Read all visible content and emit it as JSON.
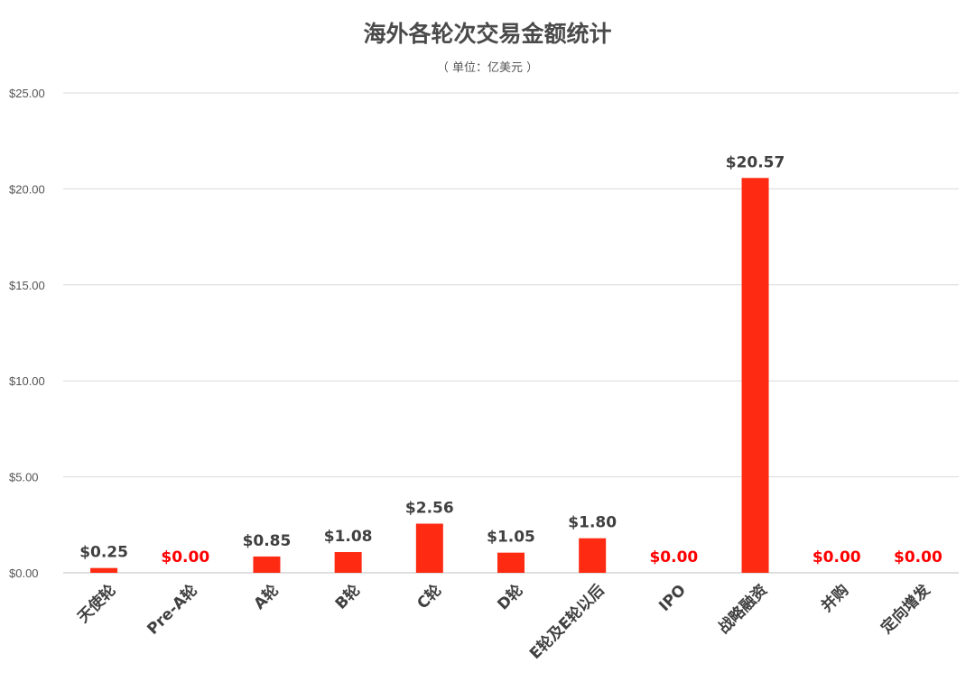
{
  "colors": {
    "bar": "#ff2a12",
    "label_normal": "#404040",
    "label_zero": "#ff0000",
    "grid": "#d9d9d9",
    "title": "#4a4a4a"
  },
  "chart_data": {
    "type": "bar",
    "title": "海外各轮次交易金额统计",
    "subtitle": "（ 单位：亿美元 ）",
    "xlabel": "",
    "ylabel": "",
    "ylim": [
      0,
      25
    ],
    "yticks": [
      0,
      5,
      10,
      15,
      20,
      25
    ],
    "ytick_labels": [
      "$0.00",
      "$5.00",
      "$10.00",
      "$15.00",
      "$20.00",
      "$25.00"
    ],
    "grid": true,
    "legend": "none",
    "categories": [
      "天使轮",
      "Pre-A轮",
      "A轮",
      "B轮",
      "C轮",
      "D轮",
      "E轮及E轮以后",
      "IPO",
      "战略融资",
      "并购",
      "定向增发"
    ],
    "values": [
      0.25,
      0.0,
      0.85,
      1.08,
      2.56,
      1.05,
      1.8,
      0.0,
      20.57,
      0.0,
      0.0
    ],
    "data_labels": [
      "$0.25",
      "$0.00",
      "$0.85",
      "$1.08",
      "$2.56",
      "$1.05",
      "$1.80",
      "$0.00",
      "$20.57",
      "$0.00",
      "$0.00"
    ]
  }
}
